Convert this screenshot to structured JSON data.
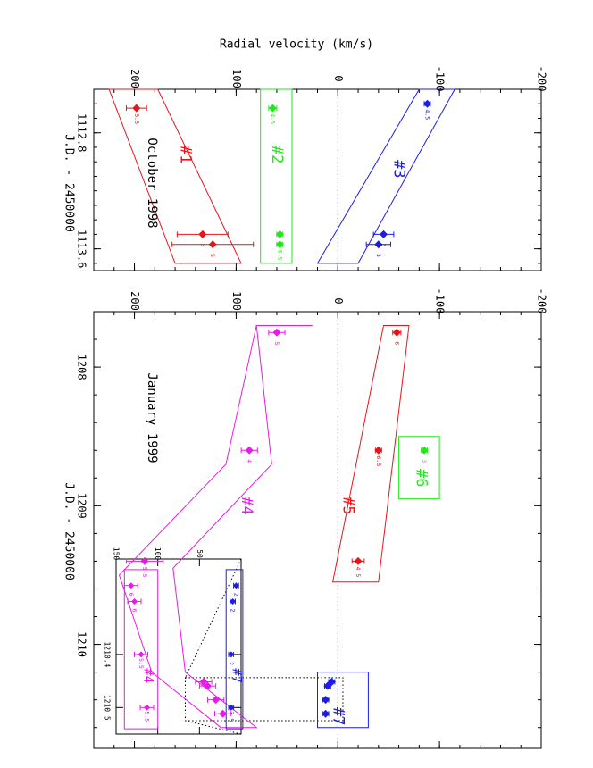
{
  "chart_data": [
    {
      "type": "scatter",
      "orientation": "rotated-90",
      "ylabel": "Radial velocity (km/s)",
      "xlabel": "J.D. - 2450000",
      "annotation": "October 1998",
      "xlim": [
        1112.5,
        1113.75
      ],
      "ylim": [
        -200,
        240
      ],
      "x_ticks": [
        "1112.8",
        "1113.6"
      ],
      "y_ticks": [
        "-200",
        "-100",
        "0",
        "100",
        "200"
      ],
      "zero_line": true,
      "series": [
        {
          "name": "#1",
          "color": "#e8141a",
          "points": [
            {
              "x": 1112.63,
              "y": 198,
              "err": 10,
              "label": "5.5"
            },
            {
              "x": 1113.5,
              "y": 133,
              "err": 25,
              "label": "5"
            },
            {
              "x": 1113.57,
              "y": 123,
              "err": 40,
              "label": "5"
            }
          ]
        },
        {
          "name": "#2",
          "color": "#22e81a",
          "points": [
            {
              "x": 1112.63,
              "y": 64,
              "err": 4,
              "label": "4.5"
            },
            {
              "x": 1113.5,
              "y": 57,
              "err": 3,
              "label": "6"
            },
            {
              "x": 1113.57,
              "y": 57,
              "err": 3,
              "label": "6.5"
            }
          ]
        },
        {
          "name": "#3",
          "color": "#1c1ce6",
          "points": [
            {
              "x": 1112.6,
              "y": -88,
              "err": 3,
              "label": "4.5"
            },
            {
              "x": 1113.5,
              "y": -45,
              "err": 10,
              "label": "3"
            },
            {
              "x": 1113.57,
              "y": -40,
              "err": 12,
              "label": "3"
            }
          ]
        }
      ]
    },
    {
      "type": "scatter",
      "orientation": "rotated-90",
      "xlabel": "J.D. - 2450000",
      "annotation": "January 1999",
      "xlim": [
        1207.6,
        1210.75
      ],
      "ylim": [
        -200,
        240
      ],
      "x_ticks": [
        "1208",
        "1209",
        "1210"
      ],
      "y_ticks": [
        "-200",
        "-100",
        "0",
        "100",
        "200"
      ],
      "zero_line": true,
      "series": [
        {
          "name": "#4",
          "color": "#e61ce6",
          "points": [
            {
              "x": 1207.75,
              "y": 60,
              "err": 8,
              "label": "5"
            },
            {
              "x": 1208.6,
              "y": 87,
              "err": 8,
              "label": "4"
            },
            {
              "x": 1209.4,
              "y": 190,
              "err": 18,
              "label": "5.5"
            },
            {
              "x": 1210.27,
              "y": 132,
              "err": 8,
              "label": ""
            },
            {
              "x": 1210.3,
              "y": 128,
              "err": 8,
              "label": ""
            },
            {
              "x": 1210.4,
              "y": 120,
              "err": 8,
              "label": ""
            },
            {
              "x": 1210.5,
              "y": 113,
              "err": 8,
              "label": ""
            }
          ]
        },
        {
          "name": "#5",
          "color": "#e8141a",
          "points": [
            {
              "x": 1207.75,
              "y": -58,
              "err": 4,
              "label": "6"
            },
            {
              "x": 1208.6,
              "y": -40,
              "err": 3,
              "label": "6.5"
            },
            {
              "x": 1209.4,
              "y": -20,
              "err": 6,
              "label": "4.5"
            }
          ]
        },
        {
          "name": "#6",
          "color": "#22e81a",
          "points": [
            {
              "x": 1208.6,
              "y": -85,
              "err": 3,
              "label": "3"
            }
          ]
        },
        {
          "name": "#7",
          "color": "#1c1ce6",
          "points": [
            {
              "x": 1210.27,
              "y": 6,
              "err": 3,
              "label": ""
            },
            {
              "x": 1210.3,
              "y": 10,
              "err": 3,
              "label": ""
            },
            {
              "x": 1210.4,
              "y": 12,
              "err": 3,
              "label": ""
            },
            {
              "x": 1210.5,
              "y": 12,
              "err": 3,
              "label": ""
            }
          ]
        }
      ]
    },
    {
      "type": "scatter",
      "orientation": "rotated-90",
      "role": "inset",
      "xlim": [
        1210.22,
        1210.55
      ],
      "ylim": [
        0,
        150
      ],
      "x_ticks": [
        "1210.4",
        "1210.5"
      ],
      "y_ticks": [
        "50",
        "100",
        "150"
      ],
      "series": [
        {
          "name": "#4",
          "color": "#e61ce6",
          "points": [
            {
              "x": 1210.27,
              "y": 132,
              "err": 8,
              "label": "6"
            },
            {
              "x": 1210.3,
              "y": 128,
              "err": 8,
              "label": "6"
            },
            {
              "x": 1210.4,
              "y": 120,
              "err": 8,
              "label": "5.5"
            },
            {
              "x": 1210.5,
              "y": 113,
              "err": 8,
              "label": "5.5"
            }
          ]
        },
        {
          "name": "#7",
          "color": "#1c1ce6",
          "points": [
            {
              "x": 1210.27,
              "y": 6,
              "err": 3,
              "label": "2"
            },
            {
              "x": 1210.3,
              "y": 10,
              "err": 3,
              "label": "2"
            },
            {
              "x": 1210.4,
              "y": 12,
              "err": 3,
              "label": "2"
            },
            {
              "x": 1210.5,
              "y": 12,
              "err": 3,
              "label": "3.5"
            }
          ]
        }
      ]
    }
  ]
}
